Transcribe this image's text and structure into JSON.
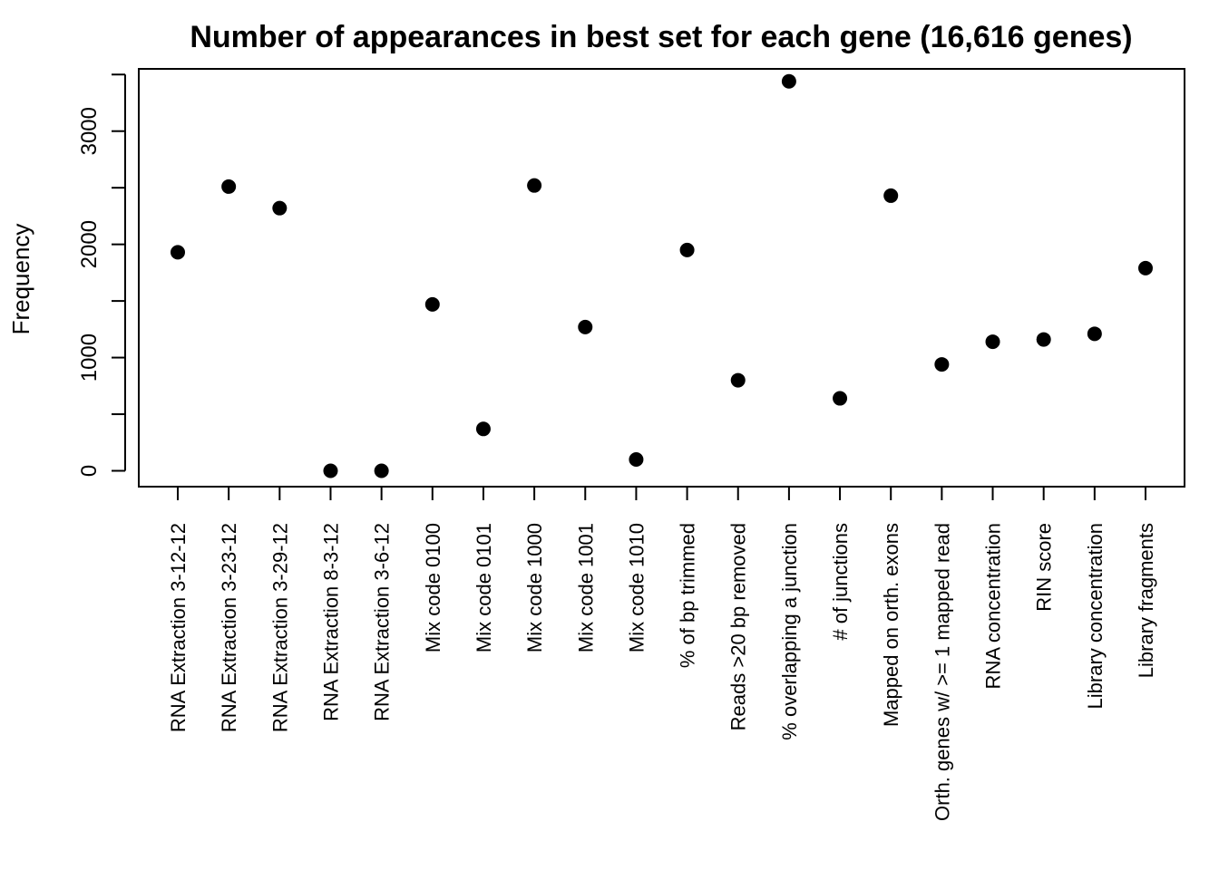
{
  "chart_data": {
    "type": "scatter",
    "title": "Number of appearances in best set for each gene (16,616 genes)",
    "xlabel": "",
    "ylabel": "Frequency",
    "ylim": [
      -140,
      3550
    ],
    "yticks": [
      0,
      500,
      1000,
      1500,
      2000,
      2500,
      3000,
      3500
    ],
    "ytick_labels": [
      "0",
      "",
      "1000",
      "",
      "2000",
      "",
      "3000",
      ""
    ],
    "grid": false,
    "categories": [
      "RNA Extraction 3-12-12",
      "RNA Extraction 3-23-12",
      "RNA Extraction 3-29-12",
      "RNA Extraction 8-3-12",
      "RNA Extraction 3-6-12",
      "Mix code 0100",
      "Mix code 0101",
      "Mix code 1000",
      "Mix code 1001",
      "Mix code 1010",
      "% of bp trimmed",
      "Reads >20 bp removed",
      "% overlapping a junction",
      "# of junctions",
      "Mapped on orth. exons",
      "Orth. genes w/ >= 1 mapped read",
      "RNA concentration",
      "RIN score",
      "Library concentration",
      "Library fragments"
    ],
    "values": [
      1930,
      2510,
      2320,
      0,
      0,
      1470,
      370,
      2520,
      1270,
      100,
      1950,
      800,
      3440,
      640,
      2430,
      940,
      1140,
      1160,
      1210,
      1790
    ],
    "marker_color": "#000000"
  }
}
